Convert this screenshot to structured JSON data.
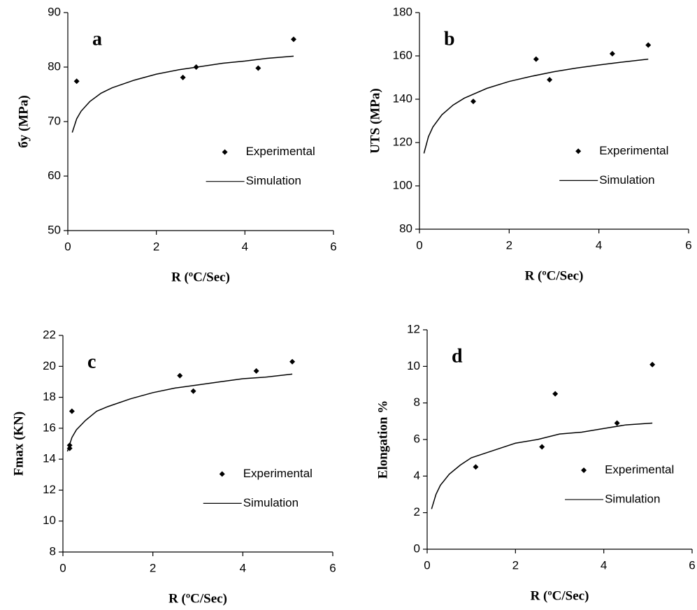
{
  "chart_data": [
    {
      "type": "scatter",
      "label": "a",
      "xlabel": "R (ºC/Sec)",
      "ylabel": "бy (MPa)",
      "xlim": [
        0,
        6
      ],
      "xticks": [
        0,
        2,
        4,
        6
      ],
      "ylim": [
        50,
        90
      ],
      "yticks": [
        50,
        60,
        70,
        80,
        90
      ],
      "series": [
        {
          "name": "Experimental",
          "mark": "diamond",
          "color": "#000000",
          "x": [
            0.2,
            2.6,
            2.9,
            4.3,
            5.1
          ],
          "values": [
            77.4,
            78.1,
            80,
            79.8,
            85.1
          ]
        },
        {
          "name": "Simulation",
          "mark": "line",
          "color": "#000000",
          "x": [
            0.1,
            0.2,
            0.3,
            0.5,
            0.75,
            1,
            1.5,
            2,
            2.5,
            3,
            3.5,
            4,
            4.5,
            5.1
          ],
          "values": [
            68.0,
            70.5,
            71.9,
            73.7,
            75.2,
            76.2,
            77.6,
            78.7,
            79.5,
            80.1,
            80.7,
            81.1,
            81.6,
            82.0
          ]
        }
      ]
    },
    {
      "type": "scatter",
      "label": "b",
      "xlabel": "R (ºC/Sec)",
      "ylabel": "UTS (MPa)",
      "xlim": [
        0,
        6
      ],
      "xticks": [
        0,
        2,
        4,
        6
      ],
      "ylim": [
        80,
        180
      ],
      "yticks": [
        80,
        100,
        120,
        140,
        160,
        180
      ],
      "series": [
        {
          "name": "Experimental",
          "mark": "diamond",
          "color": "#000000",
          "x": [
            1.2,
            2.6,
            2.9,
            4.3,
            5.1
          ],
          "values": [
            139,
            158.5,
            149,
            161,
            165
          ]
        },
        {
          "name": "Simulation",
          "mark": "line",
          "color": "#000000",
          "x": [
            0.1,
            0.2,
            0.3,
            0.5,
            0.75,
            1,
            1.5,
            2,
            2.5,
            3,
            3.5,
            4,
            4.5,
            5.1
          ],
          "values": [
            115.0,
            122.7,
            127.2,
            132.8,
            137.3,
            140.5,
            145.0,
            148.2,
            150.6,
            152.7,
            154.4,
            155.8,
            157.1,
            158.5
          ]
        }
      ]
    },
    {
      "type": "scatter",
      "label": "c",
      "xlabel": "R (ºC/Sec)",
      "ylabel": "Fmax (KN)",
      "xlim": [
        0,
        6
      ],
      "xticks": [
        0,
        2,
        4,
        6
      ],
      "ylim": [
        8,
        22
      ],
      "yticks": [
        8,
        10,
        12,
        14,
        16,
        18,
        20,
        22
      ],
      "series": [
        {
          "name": "Experimental",
          "mark": "diamond",
          "color": "#000000",
          "x": [
            0.15,
            0.15,
            0.2,
            2.6,
            2.9,
            4.3,
            5.1
          ],
          "values": [
            14.7,
            14.9,
            17.1,
            19.4,
            18.4,
            19.7,
            20.3
          ]
        },
        {
          "name": "Simulation",
          "mark": "line",
          "color": "#000000",
          "x": [
            0.1,
            0.2,
            0.3,
            0.5,
            0.75,
            1,
            1.5,
            2,
            2.5,
            3,
            3.5,
            4,
            4.5,
            5.1
          ],
          "values": [
            14.5,
            15.4,
            15.9,
            16.5,
            17.1,
            17.4,
            17.9,
            18.3,
            18.6,
            18.8,
            19.0,
            19.2,
            19.3,
            19.5
          ]
        }
      ]
    },
    {
      "type": "scatter",
      "label": "d",
      "xlabel": "R (ºC/Sec)",
      "ylabel": "Elongation %",
      "xlim": [
        0,
        6
      ],
      "xticks": [
        0,
        2,
        4,
        6
      ],
      "ylim": [
        0,
        12
      ],
      "yticks": [
        0,
        2,
        4,
        6,
        8,
        10,
        12
      ],
      "series": [
        {
          "name": "Experimental",
          "mark": "diamond",
          "color": "#000000",
          "x": [
            1.1,
            2.6,
            2.9,
            4.3,
            5.1
          ],
          "values": [
            4.5,
            5.6,
            8.5,
            6.9,
            10.1
          ]
        },
        {
          "name": "Simulation",
          "mark": "line",
          "color": "#000000",
          "x": [
            0.1,
            0.2,
            0.3,
            0.5,
            0.75,
            1,
            1.5,
            2,
            2.5,
            3,
            3.5,
            4,
            4.5,
            5.1
          ],
          "values": [
            2.2,
            3.0,
            3.5,
            4.1,
            4.6,
            5.0,
            5.4,
            5.8,
            6.0,
            6.3,
            6.4,
            6.6,
            6.8,
            6.9
          ]
        }
      ]
    }
  ]
}
